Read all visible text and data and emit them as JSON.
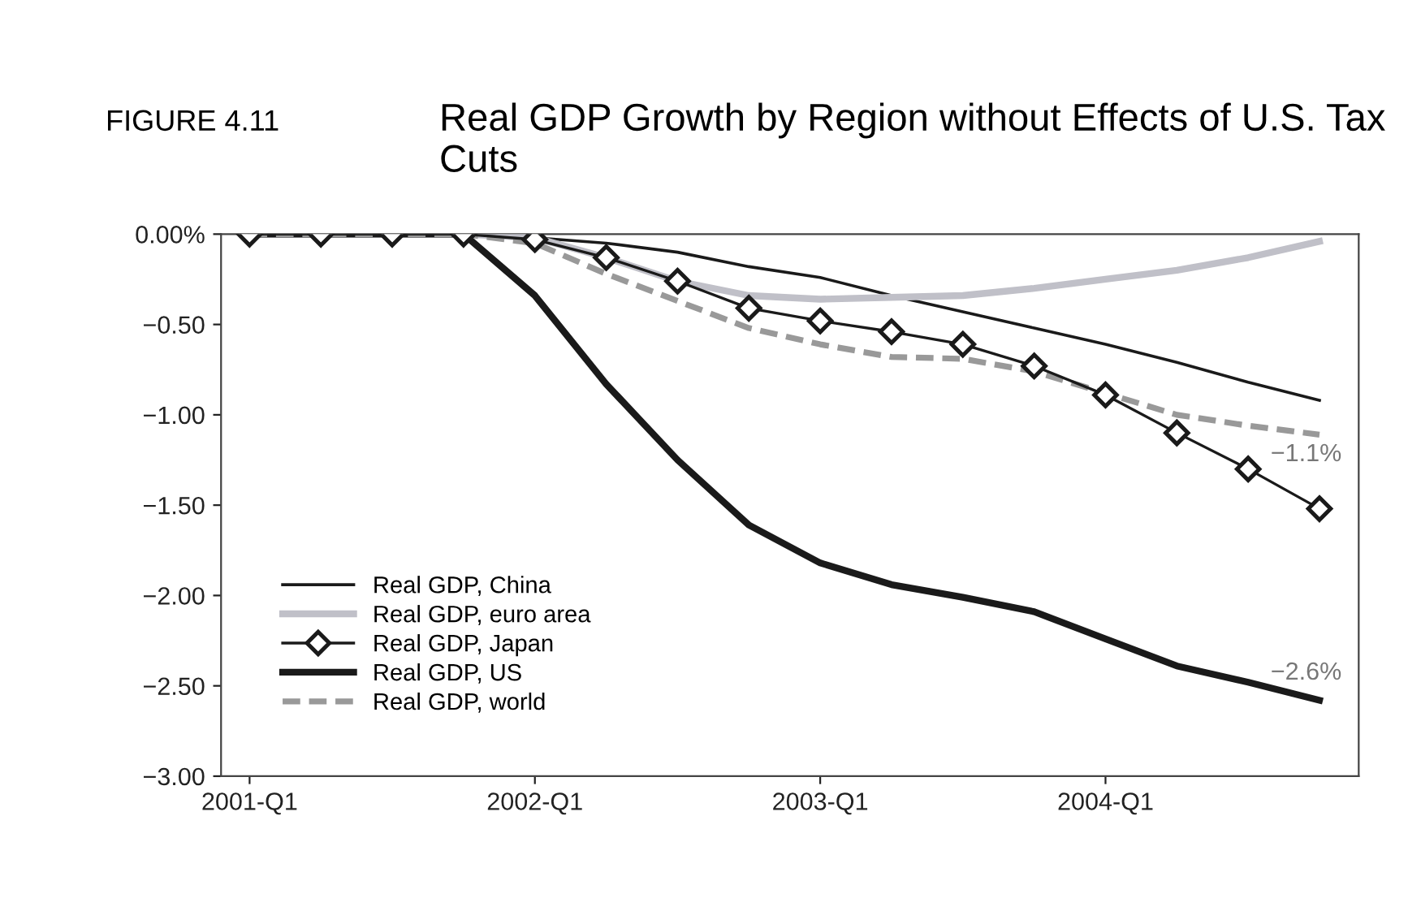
{
  "chart_data": {
    "type": "line",
    "title": "Real GDP Growth by Region without Effects of U.S. Tax Cuts",
    "annotations": [
      "FIGURE 4.11",
      "−1.1%",
      "−2.6%"
    ],
    "categories": [
      "2001-Q1",
      null,
      null,
      null,
      "2002-Q1",
      null,
      null,
      null,
      "2003-Q1",
      null,
      null,
      null,
      "2004-Q1",
      null,
      null,
      null
    ],
    "ylim": [
      -3,
      0
    ],
    "yticks": [
      {
        "value": 0,
        "label": "0.00%"
      },
      {
        "value": -0.5,
        "label": "−0.50"
      },
      {
        "value": -1,
        "label": "−1.00"
      },
      {
        "value": -1.5,
        "label": "−1.50"
      },
      {
        "value": -2,
        "label": "−2.00"
      },
      {
        "value": -2.5,
        "label": "−2.50"
      },
      {
        "value": -3,
        "label": "−3.00"
      }
    ],
    "grid": false,
    "legend": "bottom left",
    "series": [
      {
        "name": "Real GDP, China",
        "color": "#1a1a1a",
        "line_style": "solid",
        "marker": "none",
        "values": [
          0,
          0,
          0,
          0,
          -0.02,
          -0.05,
          -0.1,
          -0.18,
          -0.24,
          -0.34,
          -0.43,
          -0.52,
          -0.61,
          -0.71,
          -0.82,
          -0.92
        ]
      },
      {
        "name": "Real GDP, euro area",
        "color": "#c0c0c8",
        "line_style": "solid",
        "marker": "none",
        "values": [
          0,
          0,
          0,
          0,
          -0.02,
          -0.13,
          -0.26,
          -0.34,
          -0.36,
          -0.35,
          -0.34,
          -0.3,
          -0.25,
          -0.2,
          -0.13,
          -0.04
        ]
      },
      {
        "name": "Real GDP, Japan",
        "color": "#1a1a1a",
        "line_style": "solid",
        "marker": "diamond",
        "values": [
          0,
          0,
          0,
          0,
          -0.03,
          -0.13,
          -0.26,
          -0.41,
          -0.48,
          -0.54,
          -0.61,
          -0.73,
          -0.89,
          -1.1,
          -1.3,
          -1.52
        ]
      },
      {
        "name": "Real GDP, US",
        "color": "#1a1a1a",
        "line_style": "solid",
        "marker": "none",
        "values": [
          0,
          0,
          0,
          0,
          -0.34,
          -0.83,
          -1.25,
          -1.61,
          -1.82,
          -1.94,
          -2.01,
          -2.09,
          -2.24,
          -2.39,
          -2.48,
          -2.58
        ]
      },
      {
        "name": "Real GDP, world",
        "color": "#999999",
        "line_style": "dashed",
        "marker": "none",
        "values": [
          0,
          0,
          0,
          0,
          -0.05,
          -0.22,
          -0.37,
          -0.52,
          -0.61,
          -0.68,
          -0.69,
          -0.76,
          -0.88,
          -1.0,
          -1.06,
          -1.11
        ]
      }
    ]
  }
}
